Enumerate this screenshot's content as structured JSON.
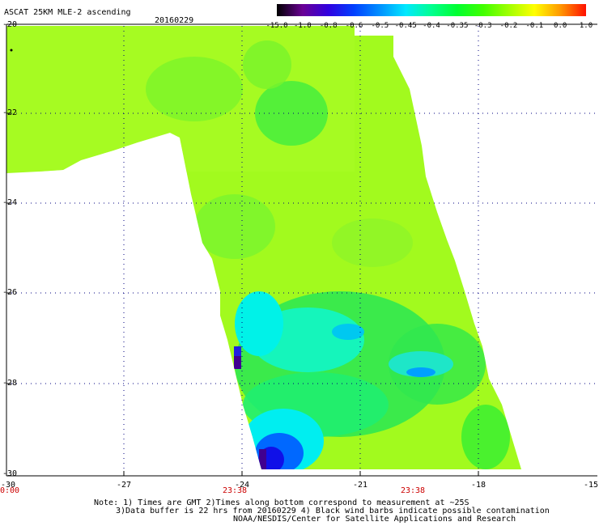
{
  "header": {
    "title": "ASCAT 25KM MLE-2 ascending",
    "date": "20160229"
  },
  "colorbar": {
    "labels": [
      "-15.0",
      "-1.0",
      "-0.8",
      "-0.6",
      "-0.5",
      "-0.45",
      "-0.4",
      "-0.35",
      "-0.3",
      "-0.2",
      "-0.1",
      "0.0",
      "1.0"
    ],
    "colors": [
      "#000000",
      "#6a0094",
      "#3000e0",
      "#0040ff",
      "#0090ff",
      "#00e8ff",
      "#00ff90",
      "#00ff30",
      "#40ff00",
      "#a0ff00",
      "#ffff00",
      "#ff9800",
      "#ff1000"
    ]
  },
  "axes": {
    "lat_labels": [
      "-20",
      "-22",
      "-24",
      "-26",
      "-28",
      "-30"
    ],
    "lon_labels": [
      "-30",
      "-27",
      "-24",
      "-21",
      "-18",
      "-15"
    ],
    "time_labels": [
      "0:00",
      "23:38",
      "23:38"
    ]
  },
  "notes": [
    "Note: 1) Times are GMT 2)Times along bottom correspond to measurement at ~25S",
    "3)Data buffer is 22 hrs from 20160229 4) Black wind barbs indicate possible contamination",
    "NOAA/NESDIS/Center for Satellite Applications and Research"
  ]
}
